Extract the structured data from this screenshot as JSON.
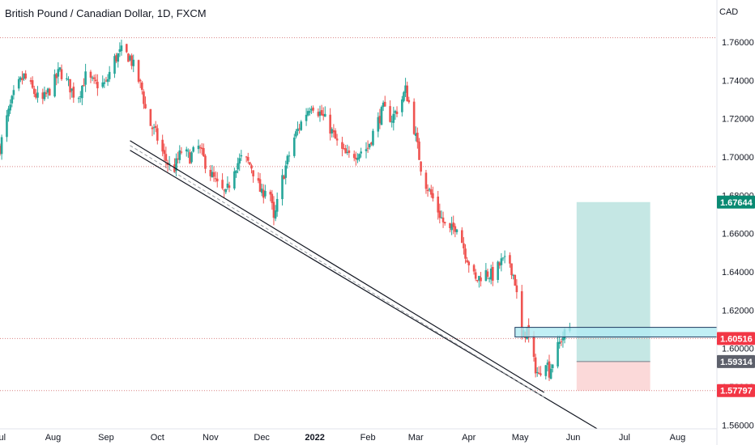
{
  "header": {
    "title": "British Pound / Canadian Dollar, 1D, FXCM",
    "currency": "CAD"
  },
  "colors": {
    "up": "#26a69a",
    "down": "#ef5350",
    "target_zone": "#b2dfdb",
    "stop_zone": "#fbd5d5",
    "box_fill": "#b2ebf2",
    "box_border": "#1e3a5f",
    "badge_green": "#0a8a73",
    "badge_red": "#f23645",
    "badge_gray": "#5d606b",
    "guide": "#d98383",
    "channel": "#131722"
  },
  "chart_data": {
    "type": "candlestick",
    "title": "British Pound / Canadian Dollar, 1D, FXCM",
    "x_axis": {
      "labels": [
        "Jul",
        "Aug",
        "Sep",
        "Oct",
        "Nov",
        "Dec",
        "2022",
        "Feb",
        "Mar",
        "Apr",
        "May",
        "Jun",
        "Jul",
        "Aug"
      ],
      "dates": [
        "2021-07-01",
        "2021-08-01",
        "2021-09-01",
        "2021-10-01",
        "2021-11-01",
        "2021-12-01",
        "2022-01-01",
        "2022-02-01",
        "2022-03-01",
        "2022-04-01",
        "2022-05-01",
        "2022-06-01",
        "2022-07-01",
        "2022-08-01"
      ],
      "range": [
        "2021-07-01",
        "2022-08-24"
      ]
    },
    "y_axis": {
      "label": "CAD",
      "ticks": [
        "1.56000",
        "1.58000",
        "1.60000",
        "1.62000",
        "1.64000",
        "1.66000",
        "1.68000",
        "1.70000",
        "1.72000",
        "1.74000",
        "1.76000"
      ],
      "range": [
        1.558,
        1.782
      ]
    },
    "price_points": [
      [
        "2021-07-01",
        1.705
      ],
      [
        "2021-07-05",
        1.72
      ],
      [
        "2021-07-10",
        1.735
      ],
      [
        "2021-07-15",
        1.742
      ],
      [
        "2021-07-20",
        1.735
      ],
      [
        "2021-07-25",
        1.728
      ],
      [
        "2021-08-01",
        1.738
      ],
      [
        "2021-08-05",
        1.745
      ],
      [
        "2021-08-10",
        1.738
      ],
      [
        "2021-08-15",
        1.73
      ],
      [
        "2021-08-20",
        1.742
      ],
      [
        "2021-08-25",
        1.738
      ],
      [
        "2021-09-01",
        1.738
      ],
      [
        "2021-09-05",
        1.75
      ],
      [
        "2021-09-10",
        1.755
      ],
      [
        "2021-09-15",
        1.752
      ],
      [
        "2021-09-18",
        1.745
      ],
      [
        "2021-09-22",
        1.735
      ],
      [
        "2021-09-25",
        1.72
      ],
      [
        "2021-09-30",
        1.712
      ],
      [
        "2021-10-05",
        1.7
      ],
      [
        "2021-10-10",
        1.692
      ],
      [
        "2021-10-15",
        1.703
      ],
      [
        "2021-10-20",
        1.7
      ],
      [
        "2021-10-25",
        1.705
      ],
      [
        "2021-10-30",
        1.695
      ],
      [
        "2021-11-05",
        1.685
      ],
      [
        "2021-11-10",
        1.68
      ],
      [
        "2021-11-15",
        1.695
      ],
      [
        "2021-11-20",
        1.7
      ],
      [
        "2021-11-25",
        1.695
      ],
      [
        "2021-12-01",
        1.68
      ],
      [
        "2021-12-05",
        1.688
      ],
      [
        "2021-12-08",
        1.666
      ],
      [
        "2021-12-12",
        1.685
      ],
      [
        "2021-12-15",
        1.695
      ],
      [
        "2021-12-20",
        1.71
      ],
      [
        "2021-12-25",
        1.72
      ],
      [
        "2021-12-30",
        1.728
      ],
      [
        "2022-01-05",
        1.722
      ],
      [
        "2022-01-10",
        1.715
      ],
      [
        "2022-01-15",
        1.705
      ],
      [
        "2022-01-20",
        1.7
      ],
      [
        "2022-01-25",
        1.702
      ],
      [
        "2022-02-01",
        1.705
      ],
      [
        "2022-02-05",
        1.715
      ],
      [
        "2022-02-10",
        1.725
      ],
      [
        "2022-02-15",
        1.72
      ],
      [
        "2022-02-20",
        1.728
      ],
      [
        "2022-02-23",
        1.735
      ],
      [
        "2022-02-26",
        1.725
      ],
      [
        "2022-03-02",
        1.705
      ],
      [
        "2022-03-05",
        1.69
      ],
      [
        "2022-03-10",
        1.68
      ],
      [
        "2022-03-15",
        1.67
      ],
      [
        "2022-03-20",
        1.66
      ],
      [
        "2022-03-25",
        1.665
      ],
      [
        "2022-03-30",
        1.65
      ],
      [
        "2022-04-05",
        1.635
      ],
      [
        "2022-04-10",
        1.64
      ],
      [
        "2022-04-15",
        1.638
      ],
      [
        "2022-04-20",
        1.645
      ],
      [
        "2022-04-25",
        1.645
      ],
      [
        "2022-04-28",
        1.635
      ],
      [
        "2022-05-02",
        1.605
      ],
      [
        "2022-05-05",
        1.61
      ],
      [
        "2022-05-08",
        1.595
      ],
      [
        "2022-05-12",
        1.585
      ],
      [
        "2022-05-15",
        1.598
      ],
      [
        "2022-05-18",
        1.588
      ],
      [
        "2022-05-22",
        1.598
      ],
      [
        "2022-05-25",
        1.605
      ],
      [
        "2022-05-30",
        1.6108
      ]
    ],
    "horizontal_levels": [
      1.7623,
      1.695,
      1.60516,
      1.57797
    ],
    "channel": {
      "upper": [
        [
          "2021-09-15",
          1.7085
        ],
        [
          "2022-05-15",
          1.577
        ]
      ],
      "lower": [
        [
          "2021-09-15",
          1.7035
        ],
        [
          "2022-06-15",
          1.558
        ]
      ]
    },
    "resistance_zone": {
      "from": "2022-04-28",
      "to": "2022-08-24",
      "top": 1.611,
      "bottom": 1.606
    },
    "position": {
      "from": "2022-06-03",
      "to": "2022-07-16",
      "entry": 1.59314,
      "target": 1.67644,
      "stop": 1.57797
    },
    "price_labels": [
      {
        "text": "1.67644",
        "value": 1.67644,
        "color": "green"
      },
      {
        "text": "1.60516",
        "value": 1.60516,
        "color": "red"
      },
      {
        "text": "1.59314",
        "value": 1.59314,
        "color": "gray"
      },
      {
        "text": "1.57797",
        "value": 1.57797,
        "color": "red"
      }
    ]
  }
}
